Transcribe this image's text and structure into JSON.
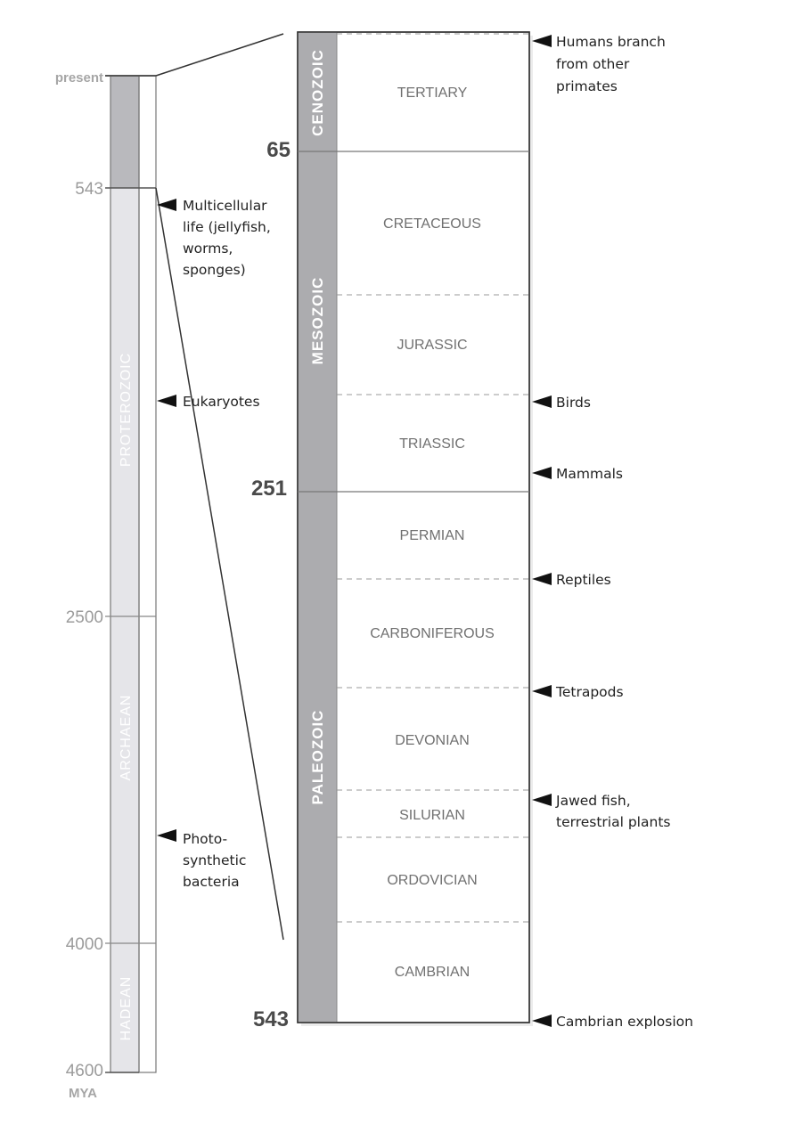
{
  "unit_label": "MYA",
  "left_scale": {
    "present_label": "present",
    "ticks": [
      "543",
      "2500",
      "4000",
      "4600"
    ],
    "eons": [
      "PROTEROZOIC",
      "ARCHAEAN",
      "HADEAN"
    ]
  },
  "left_events": [
    [
      "Multicellular",
      "life (jellyfish,",
      "worms,",
      "sponges)"
    ],
    [
      "Eukaryotes"
    ],
    [
      "Photo-",
      "synthetic",
      "bacteria"
    ]
  ],
  "right_scale": {
    "ticks": [
      "65",
      "251",
      "543"
    ],
    "eras": [
      "CENOZOIC",
      "MESOZOIC",
      "PALEOZOIC"
    ],
    "periods": [
      "TERTIARY",
      "CRETACEOUS",
      "JURASSIC",
      "TRIASSIC",
      "PERMIAN",
      "CARBONIFEROUS",
      "DEVONIAN",
      "SILURIAN",
      "ORDOVICIAN",
      "CAMBRIAN"
    ]
  },
  "right_events": [
    [
      "Humans branch",
      "from other",
      "primates"
    ],
    [
      "Birds"
    ],
    [
      "Mammals"
    ],
    [
      "Reptiles"
    ],
    [
      "Tetrapods"
    ],
    [
      "Jawed fish,",
      "terrestrial plants"
    ],
    [
      "Cambrian explosion"
    ]
  ],
  "colors": {
    "recent_fill": "#b9b9bd",
    "eon_fill": "#e5e5e9",
    "era_fill": "#acacaf",
    "line": "#555555",
    "marker": "#111111"
  }
}
